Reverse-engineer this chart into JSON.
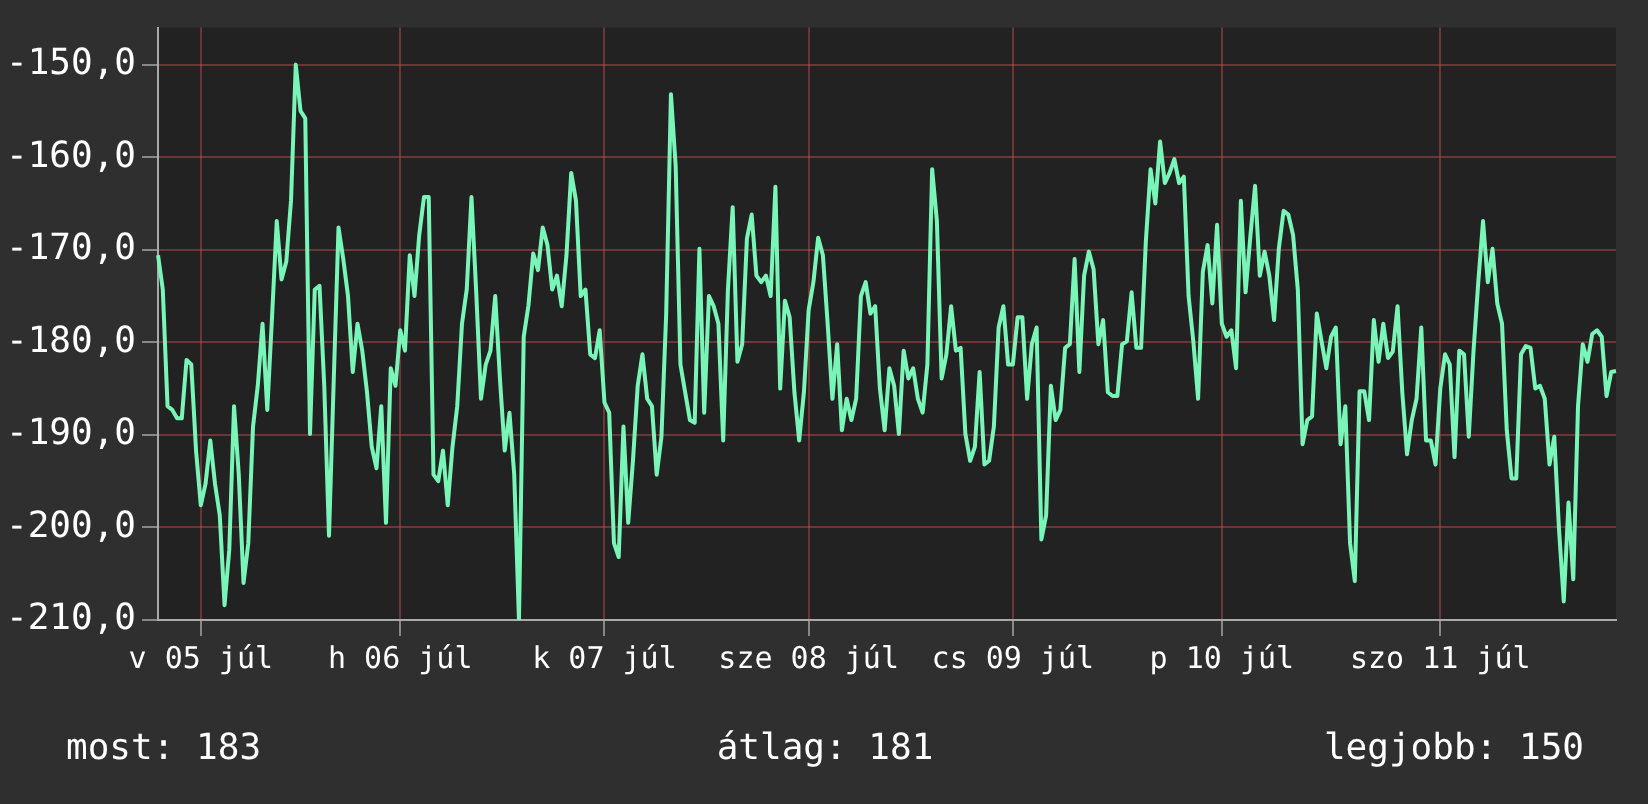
{
  "chart_data": {
    "type": "line",
    "annotations": [
      "most: 183",
      "átlag: 181",
      "legjobb: 150"
    ],
    "categories": [
      null,
      null,
      null,
      null,
      null,
      null,
      null,
      null,
      null,
      "v 05 júl",
      null,
      null,
      null,
      null,
      null,
      null,
      null,
      null,
      null,
      null,
      null,
      null,
      null,
      null,
      null,
      null,
      null,
      null,
      null,
      null,
      null,
      null,
      null,
      null,
      null,
      null,
      null,
      null,
      null,
      null,
      null,
      null,
      null,
      null,
      null,
      null,
      null,
      null,
      null,
      null,
      null,
      "h 06 júl",
      null,
      null,
      null,
      null,
      null,
      null,
      null,
      null,
      null,
      null,
      null,
      null,
      null,
      null,
      null,
      null,
      null,
      null,
      null,
      null,
      null,
      null,
      null,
      null,
      null,
      null,
      null,
      null,
      null,
      null,
      null,
      null,
      null,
      null,
      null,
      null,
      null,
      null,
      null,
      null,
      null,
      null,
      "k 07 júl",
      null,
      null,
      null,
      null,
      null,
      null,
      null,
      null,
      null,
      null,
      null,
      null,
      null,
      null,
      null,
      null,
      null,
      null,
      null,
      null,
      null,
      null,
      null,
      null,
      null,
      null,
      null,
      null,
      null,
      null,
      null,
      null,
      null,
      null,
      null,
      null,
      null,
      null,
      null,
      null,
      null,
      null,
      "sze 08 júl",
      null,
      null,
      null,
      null,
      null,
      null,
      null,
      null,
      null,
      null,
      null,
      null,
      null,
      null,
      null,
      null,
      null,
      null,
      null,
      null,
      null,
      null,
      null,
      null,
      null,
      null,
      null,
      null,
      null,
      null,
      null,
      null,
      null,
      null,
      null,
      null,
      null,
      null,
      null,
      null,
      null,
      null,
      "cs 09 júl",
      null,
      null,
      null,
      null,
      null,
      null,
      null,
      null,
      null,
      null,
      null,
      null,
      null,
      null,
      null,
      null,
      null,
      null,
      null,
      null,
      null,
      null,
      null,
      null,
      null,
      null,
      null,
      null,
      null,
      null,
      null,
      null,
      null,
      null,
      null,
      null,
      null,
      null,
      null,
      null,
      null,
      null,
      null,
      "p 10 júl",
      null,
      null,
      null,
      null,
      null,
      null,
      null,
      null,
      null,
      null,
      null,
      null,
      null,
      null,
      null,
      null,
      null,
      null,
      null,
      null,
      null,
      null,
      null,
      null,
      null,
      null,
      null,
      null,
      null,
      null,
      null,
      null,
      null,
      null,
      null,
      null,
      null,
      null,
      null,
      null,
      null,
      null,
      null,
      null,
      null,
      "szo 11 júl",
      null,
      null,
      null,
      null,
      null,
      null,
      null,
      null,
      null,
      null,
      null,
      null,
      null,
      null,
      null,
      null,
      null,
      null,
      null,
      null,
      null,
      null,
      null,
      null,
      null,
      null,
      null,
      null,
      null,
      null,
      null,
      null,
      null,
      null,
      null,
      null,
      null
    ],
    "series": [
      {
        "color": "#7af5b8",
        "values": [
          -170.6,
          -174.3,
          -186.9,
          -187.3,
          -188.2,
          -188.2,
          -181.9,
          -182.4,
          -191.7,
          -197.6,
          -195.3,
          -190.6,
          -195.3,
          -198.7,
          -208.4,
          -202.4,
          -186.9,
          -194.3,
          -206,
          -201.7,
          -189.1,
          -184.7,
          -178,
          -187.3,
          -177.3,
          -166.9,
          -173.2,
          -171.3,
          -164.7,
          -150,
          -155,
          -155.8,
          -189.9,
          -174.3,
          -173.9,
          -184.7,
          -200.9,
          -184,
          -167.6,
          -171,
          -175,
          -183.2,
          -178,
          -180.9,
          -185.4,
          -191.3,
          -193.6,
          -186.9,
          -199.5,
          -182.8,
          -184.7,
          -178.7,
          -180.9,
          -170.6,
          -175,
          -168.4,
          -164.3,
          -164.3,
          -194.3,
          -195,
          -191.7,
          -197.6,
          -191.3,
          -186.9,
          -178,
          -174.3,
          -164.3,
          -174.6,
          -186.1,
          -182.4,
          -180.9,
          -175,
          -184,
          -191.7,
          -187.6,
          -194.3,
          -210,
          -179.4,
          -176,
          -170.4,
          -172.2,
          -167.6,
          -169.5,
          -174.3,
          -172.8,
          -176.1,
          -170.6,
          -161.7,
          -164.7,
          -175,
          -174.3,
          -181.3,
          -181.7,
          -178.7,
          -186.5,
          -187.6,
          -201.7,
          -203.2,
          -189.1,
          -199.5,
          -192.8,
          -184.7,
          -181.3,
          -186.1,
          -186.9,
          -194.3,
          -190.2,
          -176.9,
          -153.2,
          -161,
          -182.4,
          -185.4,
          -188.4,
          -188.7,
          -169.9,
          -187.6,
          -175,
          -176.1,
          -178,
          -190.6,
          -174.3,
          -165.4,
          -182.1,
          -180.2,
          -168.8,
          -166.2,
          -172.8,
          -173.5,
          -172.8,
          -175,
          -163.2,
          -185,
          -175.5,
          -177.3,
          -185.4,
          -190.6,
          -185.4,
          -176.5,
          -173.5,
          -168.7,
          -170.6,
          -178,
          -186.1,
          -180.2,
          -189.5,
          -186.1,
          -188.4,
          -186.1,
          -175,
          -173.5,
          -176.9,
          -176.1,
          -185,
          -189.5,
          -182.8,
          -184.7,
          -189.9,
          -180.9,
          -183.9,
          -182.8,
          -186.1,
          -187.6,
          -182.4,
          -161.3,
          -166.9,
          -183.9,
          -181.3,
          -176.1,
          -180.9,
          -180.6,
          -189.9,
          -192.8,
          -191.3,
          -183.2,
          -193.2,
          -192.8,
          -189.1,
          -178.4,
          -176.1,
          -182.4,
          -182.4,
          -177.3,
          -177.3,
          -186.1,
          -180.2,
          -178.4,
          -201.3,
          -198.7,
          -184.7,
          -188.4,
          -187.3,
          -180.6,
          -180.2,
          -171,
          -183.2,
          -172.8,
          -170.2,
          -172.1,
          -180.2,
          -177.6,
          -185.4,
          -185.8,
          -185.8,
          -180.2,
          -179.9,
          -174.6,
          -180.6,
          -180.6,
          -169.1,
          -161.3,
          -165,
          -158.3,
          -162.8,
          -161.7,
          -160.2,
          -162.8,
          -162.1,
          -175,
          -179.9,
          -186.1,
          -172.4,
          -169.5,
          -175.8,
          -167.3,
          -178,
          -179.4,
          -178.7,
          -182.8,
          -164.7,
          -174.6,
          -168.6,
          -163.1,
          -172.8,
          -170.2,
          -172.8,
          -177.6,
          -169.9,
          -165.8,
          -166.2,
          -168.4,
          -174.3,
          -191,
          -188.4,
          -188,
          -176.9,
          -179.9,
          -182.8,
          -179.4,
          -178.4,
          -191,
          -186.9,
          -201.7,
          -205.8,
          -185.3,
          -185.3,
          -188.4,
          -177.6,
          -182.1,
          -178,
          -181.7,
          -181,
          -176.1,
          -185.4,
          -192.1,
          -188.4,
          -186.1,
          -178.4,
          -190.6,
          -190.6,
          -193.2,
          -185,
          -181.3,
          -182.4,
          -192.4,
          -180.9,
          -181.3,
          -190.2,
          -180.9,
          -173.5,
          -166.9,
          -173.5,
          -169.9,
          -175.8,
          -178,
          -189.5,
          -194.7,
          -194.7,
          -181.3,
          -180.4,
          -180.6,
          -185,
          -184.7,
          -186.1,
          -193.2,
          -190.2,
          -200.2,
          -208,
          -197.3,
          -205.6,
          -186.9,
          -180.2,
          -182.1,
          -179.1,
          -178.7,
          -179.4,
          -185.8,
          -183.2,
          -183.1
        ]
      }
    ],
    "ylim": [
      -210,
      -146
    ],
    "yticks": [
      {
        "value": -150,
        "label": "-150,0"
      },
      {
        "value": -160,
        "label": "-160,0"
      },
      {
        "value": -170,
        "label": "-170,0"
      },
      {
        "value": -180,
        "label": "-180,0"
      },
      {
        "value": -190,
        "label": "-190,0"
      },
      {
        "value": -200,
        "label": "-200,0"
      },
      {
        "value": -210,
        "label": "-210,0"
      }
    ],
    "grid": true,
    "legend": false,
    "marker": "none",
    "line_style": "solid"
  }
}
